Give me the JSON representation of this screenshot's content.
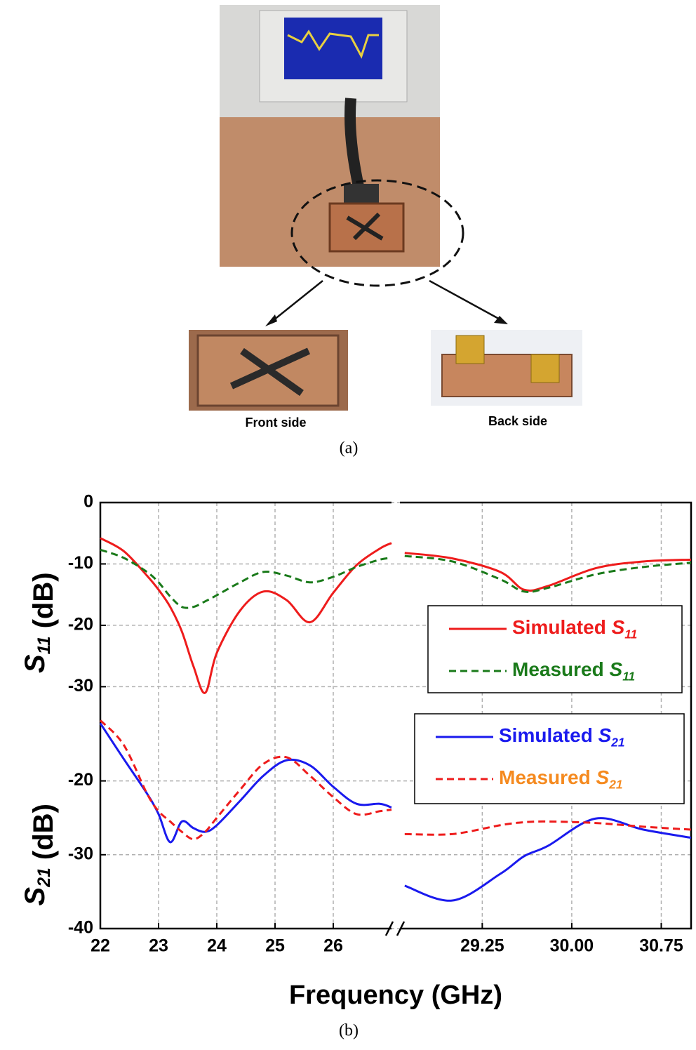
{
  "figure": {
    "photo_labels": [
      "Front side",
      "Back side"
    ],
    "caption_a": "(a)",
    "caption_b": "(b)"
  },
  "chart_data": {
    "type": "line",
    "x_label": "Frequency (GHz)",
    "y_label": "S11 (dB)",
    "y2_label": "S21 (dB)",
    "x": [
      22,
      22.4,
      22.8,
      23.0,
      23.2,
      23.4,
      23.6,
      23.8,
      24.0,
      24.4,
      24.8,
      25.2,
      25.6,
      26.0,
      26.4,
      26.8,
      27.0,
      28.6,
      29.0,
      29.4,
      29.6,
      29.8,
      30.2,
      30.6,
      31.0
    ],
    "xlim": [
      22,
      31
    ],
    "x_break": [
      27,
      28.56
    ],
    "xticks": [
      22,
      23,
      24,
      25,
      26,
      29.25,
      {
        "value": 30,
        "label": "30.00"
      },
      30.75
    ],
    "ylim": [
      -69.4,
      0
    ],
    "yticks": [
      0,
      -10,
      -20,
      -30
    ],
    "y2lim": [
      -40,
      17.7
    ],
    "y2ticks": [
      -20,
      -30,
      -40
    ],
    "grid": true,
    "series": [
      {
        "name": "Simulated S11",
        "color": "#ee1c1c",
        "dash": "solid",
        "values": [
          -5.8,
          -7.9,
          -11.9,
          -14.2,
          -17.0,
          -21.0,
          -26.7,
          -31.0,
          -24.5,
          -17.6,
          -14.5,
          -15.9,
          -19.5,
          -14.7,
          -10.2,
          -7.5,
          -6.6,
          -8.2,
          -9.1,
          -11.3,
          -14.2,
          -13.6,
          -10.7,
          -9.6,
          -9.3
        ]
      },
      {
        "name": "Measured S11",
        "color": "#1a7a1a",
        "dash": "dashed",
        "values": [
          -7.7,
          -9.0,
          -11.3,
          -13.0,
          -15.3,
          -17.0,
          -17.0,
          -16.1,
          -15.1,
          -13.0,
          -11.3,
          -11.9,
          -13.0,
          -12.1,
          -10.5,
          -9.3,
          -9.0,
          -8.7,
          -9.6,
          -12.5,
          -14.5,
          -13.9,
          -11.7,
          -10.5,
          -9.8
        ]
      },
      {
        "name": "Simulated S21",
        "color": "#1a1aee",
        "dash": "solid",
        "axis": "y2",
        "values": [
          -12.2,
          -17.0,
          -21.7,
          -24.5,
          -28.3,
          -25.5,
          -26.4,
          -26.9,
          -26.0,
          -22.7,
          -19.3,
          -17.2,
          -17.9,
          -20.8,
          -23.1,
          -23.1,
          -23.6,
          -34.2,
          -36.2,
          -32.6,
          -30.2,
          -28.8,
          -25.1,
          -26.6,
          -27.7
        ]
      },
      {
        "name": "Measured S21",
        "color": "#ee1c1c",
        "legend_color": "#f58a1f",
        "dash": "dashed",
        "axis": "y2",
        "values": [
          -11.8,
          -15.1,
          -21.7,
          -24.1,
          -25.5,
          -26.9,
          -27.9,
          -26.9,
          -25.0,
          -21.2,
          -17.7,
          -16.8,
          -19.3,
          -22.2,
          -24.5,
          -24.1,
          -23.9,
          -27.2,
          -27.2,
          -26.0,
          -25.6,
          -25.5,
          -25.7,
          -26.2,
          -26.6
        ]
      }
    ]
  }
}
